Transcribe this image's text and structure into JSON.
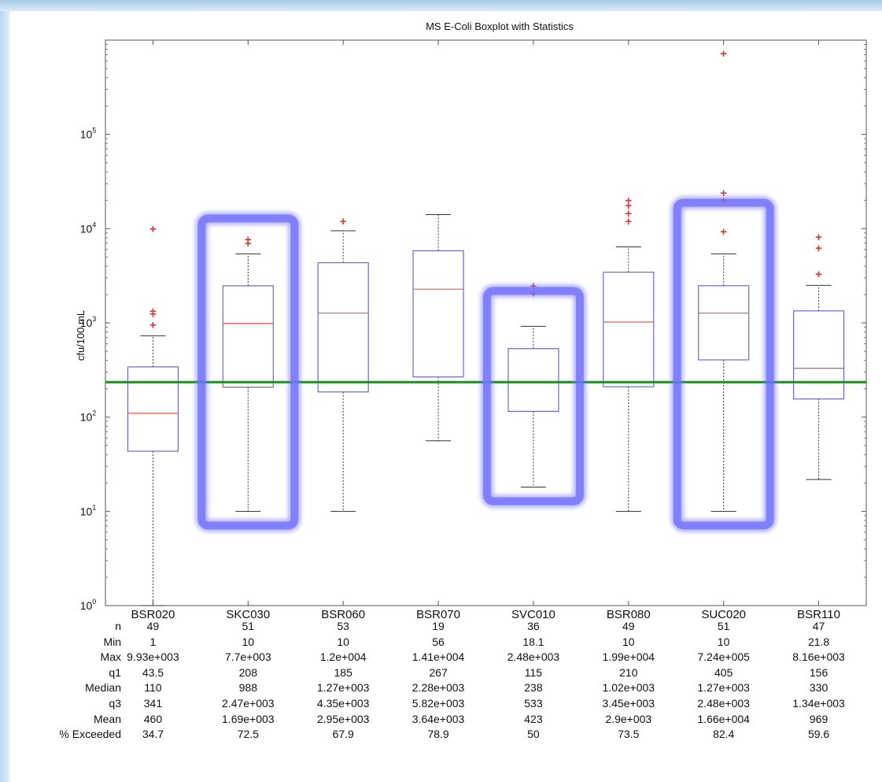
{
  "chart_data": {
    "type": "box",
    "title": "MS  E-Coli Boxplot with Statistics",
    "ylabel": "cfu/100 mL",
    "xlabel": "",
    "yscale": "log",
    "ylim": [
      1,
      1000000
    ],
    "y_ticks": [
      {
        "base": "10",
        "exp": "0"
      },
      {
        "base": "10",
        "exp": "1"
      },
      {
        "base": "10",
        "exp": "2"
      },
      {
        "base": "10",
        "exp": "3"
      },
      {
        "base": "10",
        "exp": "4"
      },
      {
        "base": "10",
        "exp": "5"
      }
    ],
    "reference_line": {
      "y": 235,
      "color": "#228b22"
    },
    "colors": {
      "box": "#6a6ad0",
      "median": "#e05a5a",
      "outlier": "#d43a3a",
      "whisker": "#333333",
      "highlight": "#7070ff"
    },
    "categories": [
      "BSR020",
      "SKC030",
      "BSR060",
      "BSR070",
      "SVC010",
      "BSR080",
      "SUC020",
      "BSR110"
    ],
    "highlighted": [
      "SKC030",
      "SVC010",
      "SUC020"
    ],
    "boxes": [
      {
        "q1": 43.5,
        "median": 110,
        "q3": 341,
        "wlow": 1,
        "whigh": 730,
        "outliers": [
          950,
          1250,
          1330,
          9930
        ]
      },
      {
        "q1": 208,
        "median": 988,
        "q3": 2470,
        "wlow": 10,
        "whigh": 5400,
        "outliers": [
          7000,
          7700
        ]
      },
      {
        "q1": 185,
        "median": 1270,
        "q3": 4350,
        "wlow": 10,
        "whigh": 9500,
        "outliers": [
          12000
        ]
      },
      {
        "q1": 267,
        "median": 2280,
        "q3": 5820,
        "wlow": 56,
        "whigh": 14100,
        "outliers": []
      },
      {
        "q1": 115,
        "median": 238,
        "q3": 533,
        "wlow": 18.1,
        "whigh": 920,
        "outliers": [
          2050,
          2480
        ]
      },
      {
        "q1": 210,
        "median": 1020,
        "q3": 3450,
        "wlow": 10,
        "whigh": 6400,
        "outliers": [
          12000,
          14500,
          17500,
          19900
        ]
      },
      {
        "q1": 405,
        "median": 1270,
        "q3": 2480,
        "wlow": 10,
        "whigh": 5400,
        "outliers": [
          9300,
          20000,
          24000,
          724000
        ]
      },
      {
        "q1": 156,
        "median": 330,
        "q3": 1340,
        "wlow": 21.8,
        "whigh": 2500,
        "outliers": [
          3300,
          6200,
          8160
        ]
      }
    ],
    "stats_rows": [
      {
        "label": "n",
        "values": [
          "49",
          "51",
          "53",
          "19",
          "36",
          "49",
          "51",
          "47"
        ]
      },
      {
        "label": "Min",
        "values": [
          "1",
          "10",
          "10",
          "56",
          "18.1",
          "10",
          "10",
          "21.8"
        ]
      },
      {
        "label": "Max",
        "values": [
          "9.93e+003",
          "7.7e+003",
          "1.2e+004",
          "1.41e+004",
          "2.48e+003",
          "1.99e+004",
          "7.24e+005",
          "8.16e+003"
        ]
      },
      {
        "label": "q1",
        "values": [
          "43.5",
          "208",
          "185",
          "267",
          "115",
          "210",
          "405",
          "156"
        ]
      },
      {
        "label": "Median",
        "values": [
          "110",
          "988",
          "1.27e+003",
          "2.28e+003",
          "238",
          "1.02e+003",
          "1.27e+003",
          "330"
        ]
      },
      {
        "label": "q3",
        "values": [
          "341",
          "2.47e+003",
          "4.35e+003",
          "5.82e+003",
          "533",
          "3.45e+003",
          "2.48e+003",
          "1.34e+003"
        ]
      },
      {
        "label": "Mean",
        "values": [
          "460",
          "1.69e+003",
          "2.95e+003",
          "3.64e+003",
          "423",
          "2.9e+003",
          "1.66e+004",
          "969"
        ]
      },
      {
        "label": "% Exceeded",
        "values": [
          "34.7",
          "72.5",
          "67.9",
          "78.9",
          "50",
          "73.5",
          "82.4",
          "59.6"
        ]
      }
    ]
  }
}
